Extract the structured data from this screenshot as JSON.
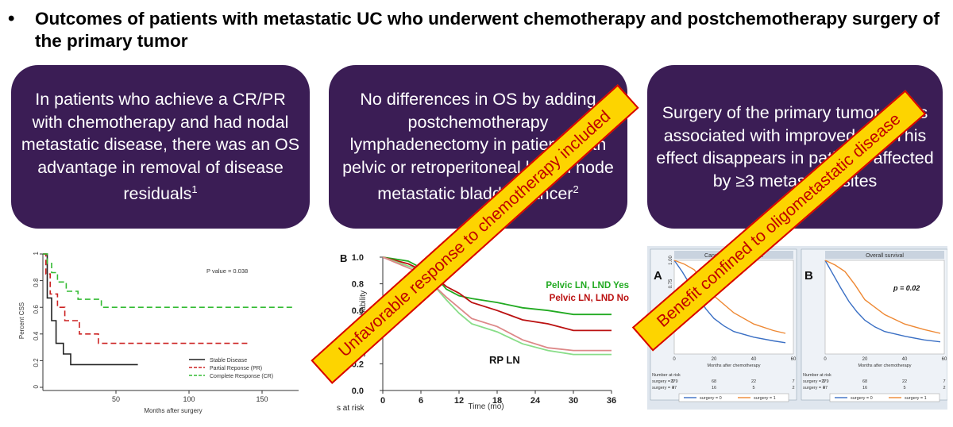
{
  "title": {
    "bullet": "•",
    "text": "Outcomes of patients with metastatic UC who underwent chemotherapy and postchemotherapy surgery of the primary tumor"
  },
  "boxes": [
    {
      "text": "In patients who achieve a CR/PR with chemotherapy and had nodal metastatic disease, there was an OS advantage in removal of disease residuals",
      "sup": "1"
    },
    {
      "text": "No differences in OS by adding postchemotherapy lymphadenectomy in patients with pelvic or retroperitoneal lymph node metastatic bladder cancer",
      "sup": "2"
    },
    {
      "text": "Surgery of the primary tumor site is associated with improved OS. This effect disappears in patients affected by ≥3 metastatic sites",
      "sup": ""
    }
  ],
  "banners": {
    "left": "Unfavorable response to chemotherapy included",
    "right": "Benefit confined to oligometastatic disease"
  },
  "colors": {
    "box_bg": "#3b1d55",
    "banner_bg": "#fdd400",
    "banner_text": "#c00000",
    "banner_border": "#d80000"
  },
  "chart_data": [
    {
      "type": "line",
      "ylabel": "Percent CSS",
      "xlabel": "Months after surgery",
      "xlim": [
        0,
        175
      ],
      "ylim": [
        0,
        1
      ],
      "xticks": [
        "50",
        "100",
        "150"
      ],
      "yticks": [
        "0",
        "0.2",
        "0.4",
        "0.6",
        "0.8",
        "1"
      ],
      "annotation": "P value = 0.038",
      "series": [
        {
          "name": "Stable Disease",
          "color": "#222222",
          "dash": "",
          "x": [
            0,
            3,
            3,
            6,
            6,
            9,
            9,
            14,
            14,
            19,
            19,
            65
          ],
          "y": [
            1,
            1,
            0.67,
            0.67,
            0.5,
            0.5,
            0.33,
            0.33,
            0.25,
            0.25,
            0.17,
            0.17
          ]
        },
        {
          "name": "Partial Reponse (PR)",
          "color": "#cc2222",
          "dash": "7,4",
          "x": [
            0,
            2,
            2,
            5,
            5,
            10,
            10,
            15,
            15,
            25,
            25,
            38,
            38,
            140
          ],
          "y": [
            1,
            1,
            0.85,
            0.85,
            0.7,
            0.7,
            0.6,
            0.6,
            0.5,
            0.5,
            0.4,
            0.4,
            0.33,
            0.33
          ]
        },
        {
          "name": "Complete Response (CR)",
          "color": "#33bb33",
          "dash": "7,4",
          "x": [
            0,
            3,
            3,
            6,
            6,
            10,
            10,
            16,
            16,
            24,
            24,
            40,
            40,
            172
          ],
          "y": [
            1,
            1,
            0.93,
            0.93,
            0.86,
            0.86,
            0.79,
            0.79,
            0.72,
            0.72,
            0.66,
            0.66,
            0.6,
            0.6
          ]
        }
      ]
    },
    {
      "type": "line",
      "panel": "B",
      "ylabel": "Survival probability",
      "xlabel": "Time (mo)",
      "xlim": [
        0,
        36
      ],
      "ylim": [
        0,
        1
      ],
      "xticks": [
        "0",
        "6",
        "12",
        "18",
        "24",
        "30",
        "36"
      ],
      "yticks": [
        "0.0",
        "0.2",
        "0.4",
        "0.6",
        "0.8",
        "1.0"
      ],
      "risk_label": "s at risk",
      "annotation": "RP LN",
      "series": [
        {
          "name": "Pelvic LN, LND Yes",
          "color": "#22aa22",
          "x": [
            0,
            4,
            8,
            10,
            12,
            14,
            18,
            22,
            26,
            30,
            33,
            36
          ],
          "y": [
            1,
            0.97,
            0.87,
            0.76,
            0.71,
            0.69,
            0.66,
            0.62,
            0.6,
            0.57,
            0.57,
            0.57
          ]
        },
        {
          "name": "Pelvic LN, LND No",
          "color": "#bb1111",
          "x": [
            0,
            4,
            8,
            10,
            12,
            14,
            18,
            22,
            26,
            30,
            33,
            36
          ],
          "y": [
            1,
            0.95,
            0.86,
            0.78,
            0.73,
            0.66,
            0.6,
            0.53,
            0.5,
            0.45,
            0.45,
            0.45
          ]
        },
        {
          "name": "",
          "color": "#88dd88",
          "x": [
            0,
            6,
            10,
            12,
            14,
            18,
            22,
            26,
            30,
            36
          ],
          "y": [
            1,
            0.9,
            0.68,
            0.58,
            0.5,
            0.44,
            0.35,
            0.3,
            0.27,
            0.27
          ]
        },
        {
          "name": "",
          "color": "#dd8888",
          "x": [
            0,
            6,
            10,
            12,
            14,
            18,
            22,
            26,
            30,
            36
          ],
          "y": [
            1,
            0.88,
            0.7,
            0.62,
            0.54,
            0.48,
            0.38,
            0.32,
            0.3,
            0.3
          ]
        }
      ]
    },
    {
      "type": "line",
      "panel": "A",
      "title": "Cancer-specific survival",
      "xlabel": "Months after chemotherapy",
      "xlim": [
        0,
        60
      ],
      "ylim": [
        0,
        1
      ],
      "xticks": [
        "0",
        "20",
        "40",
        "60"
      ],
      "yticks": [
        "0.25",
        "0.50",
        "0.75",
        "1.00"
      ],
      "risk_header": "Number at risk",
      "risk_rows": [
        {
          "label": "surgery = 0",
          "values": [
            "279",
            "68",
            "22",
            "7"
          ]
        },
        {
          "label": "surgery = 1",
          "values": [
            "47",
            "16",
            "5",
            "2"
          ]
        }
      ],
      "legend": [
        "surgery = 0",
        "surgery = 1"
      ],
      "series": [
        {
          "name": "surgery = 0",
          "color": "#3a6fc4",
          "x": [
            0,
            4,
            8,
            12,
            16,
            20,
            25,
            30,
            40,
            50,
            56
          ],
          "y": [
            1,
            0.88,
            0.74,
            0.6,
            0.48,
            0.38,
            0.3,
            0.24,
            0.18,
            0.14,
            0.12
          ]
        },
        {
          "name": "surgery = 1",
          "color": "#ee8833",
          "x": [
            0,
            5,
            10,
            15,
            20,
            30,
            40,
            50,
            56
          ],
          "y": [
            1,
            0.96,
            0.9,
            0.78,
            0.62,
            0.44,
            0.32,
            0.25,
            0.22
          ]
        }
      ]
    },
    {
      "type": "line",
      "panel": "B",
      "title": "Overall survival",
      "xlabel": "Months after chemotherapy",
      "xlim": [
        0,
        60
      ],
      "ylim": [
        0,
        1
      ],
      "xticks": [
        "0",
        "20",
        "40",
        "60"
      ],
      "yticks": [],
      "annotation": "p = 0.02",
      "risk_header": "Number at risk",
      "risk_rows": [
        {
          "label": "surgery = 0",
          "values": [
            "279",
            "68",
            "22",
            "7"
          ]
        },
        {
          "label": "surgery = 1",
          "values": [
            "47",
            "16",
            "5",
            "2"
          ]
        }
      ],
      "legend": [
        "surgery = 0",
        "surgery = 1"
      ],
      "series": [
        {
          "name": "surgery = 0",
          "color": "#3a6fc4",
          "x": [
            0,
            4,
            8,
            12,
            16,
            20,
            25,
            30,
            40,
            50,
            58
          ],
          "y": [
            1,
            0.85,
            0.7,
            0.56,
            0.45,
            0.36,
            0.29,
            0.24,
            0.19,
            0.15,
            0.13
          ]
        },
        {
          "name": "surgery = 1",
          "color": "#ee8833",
          "x": [
            0,
            5,
            10,
            15,
            20,
            30,
            40,
            50,
            58
          ],
          "y": [
            1,
            0.95,
            0.88,
            0.74,
            0.58,
            0.42,
            0.32,
            0.26,
            0.22
          ]
        }
      ]
    }
  ]
}
